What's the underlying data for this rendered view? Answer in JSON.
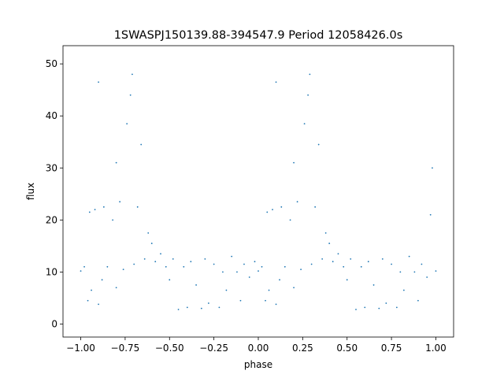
{
  "chart_data": {
    "type": "scatter",
    "title": "1SWASPJ150139.88-394547.9 Period 12058426.0s",
    "xlabel": "phase",
    "ylabel": "flux",
    "xlim": [
      -1.1,
      1.1
    ],
    "ylim": [
      -2.5,
      53.5
    ],
    "xticks": [
      -1.0,
      -0.75,
      -0.5,
      -0.25,
      0.0,
      0.25,
      0.5,
      0.75,
      1.0
    ],
    "xtick_labels": [
      "−1.00",
      "−0.75",
      "−0.50",
      "−0.25",
      "0.00",
      "0.25",
      "0.50",
      "0.75",
      "1.00"
    ],
    "yticks": [
      0,
      10,
      20,
      30,
      40,
      50
    ],
    "ytick_labels": [
      "0",
      "10",
      "20",
      "30",
      "40",
      "50"
    ],
    "grid": false,
    "legend": "none",
    "marker_color": "#1f77b4",
    "series": [
      {
        "values": [
          [
            -1.0,
            10.2
          ],
          [
            -0.98,
            11.0
          ],
          [
            -0.96,
            4.5
          ],
          [
            -0.95,
            21.5
          ],
          [
            -0.94,
            6.5
          ],
          [
            -0.92,
            22.0
          ],
          [
            -0.9,
            3.8
          ],
          [
            -0.9,
            46.5
          ],
          [
            -0.88,
            8.5
          ],
          [
            -0.87,
            22.5
          ],
          [
            -0.85,
            11.0
          ],
          [
            -0.82,
            20.0
          ],
          [
            -0.8,
            7.0
          ],
          [
            -0.8,
            31.0
          ],
          [
            -0.78,
            23.5
          ],
          [
            -0.76,
            10.5
          ],
          [
            -0.74,
            38.5
          ],
          [
            -0.72,
            44.0
          ],
          [
            -0.71,
            48.0
          ],
          [
            -0.7,
            11.5
          ],
          [
            -0.68,
            22.5
          ],
          [
            -0.66,
            34.5
          ],
          [
            -0.64,
            12.5
          ],
          [
            -0.62,
            17.5
          ],
          [
            -0.6,
            15.5
          ],
          [
            -0.58,
            12.0
          ],
          [
            -0.55,
            13.5
          ],
          [
            -0.52,
            11.0
          ],
          [
            -0.5,
            8.5
          ],
          [
            -0.48,
            12.5
          ],
          [
            -0.45,
            2.8
          ],
          [
            -0.42,
            11.0
          ],
          [
            -0.4,
            3.2
          ],
          [
            -0.38,
            12.0
          ],
          [
            -0.35,
            7.5
          ],
          [
            -0.32,
            3.0
          ],
          [
            -0.3,
            12.5
          ],
          [
            -0.28,
            4.0
          ],
          [
            -0.25,
            11.5
          ],
          [
            -0.22,
            3.2
          ],
          [
            -0.2,
            10.0
          ],
          [
            -0.18,
            6.5
          ],
          [
            -0.15,
            13.0
          ],
          [
            -0.12,
            10.0
          ],
          [
            -0.1,
            4.5
          ],
          [
            -0.08,
            11.5
          ],
          [
            -0.05,
            9.0
          ],
          [
            -0.02,
            12.0
          ],
          [
            0.0,
            10.2
          ],
          [
            0.02,
            11.0
          ],
          [
            0.04,
            4.5
          ],
          [
            0.05,
            21.5
          ],
          [
            0.06,
            6.5
          ],
          [
            0.08,
            22.0
          ],
          [
            0.1,
            3.8
          ],
          [
            0.1,
            46.5
          ],
          [
            0.12,
            8.5
          ],
          [
            0.13,
            22.5
          ],
          [
            0.15,
            11.0
          ],
          [
            0.18,
            20.0
          ],
          [
            0.2,
            7.0
          ],
          [
            0.2,
            31.0
          ],
          [
            0.22,
            23.5
          ],
          [
            0.24,
            10.5
          ],
          [
            0.26,
            38.5
          ],
          [
            0.28,
            44.0
          ],
          [
            0.29,
            48.0
          ],
          [
            0.3,
            11.5
          ],
          [
            0.32,
            22.5
          ],
          [
            0.34,
            34.5
          ],
          [
            0.36,
            12.5
          ],
          [
            0.38,
            17.5
          ],
          [
            0.4,
            15.5
          ],
          [
            0.42,
            12.0
          ],
          [
            0.45,
            13.5
          ],
          [
            0.48,
            11.0
          ],
          [
            0.5,
            8.5
          ],
          [
            0.52,
            12.5
          ],
          [
            0.55,
            2.8
          ],
          [
            0.58,
            11.0
          ],
          [
            0.6,
            3.2
          ],
          [
            0.62,
            12.0
          ],
          [
            0.65,
            7.5
          ],
          [
            0.68,
            3.0
          ],
          [
            0.7,
            12.5
          ],
          [
            0.72,
            4.0
          ],
          [
            0.75,
            11.5
          ],
          [
            0.78,
            3.2
          ],
          [
            0.8,
            10.0
          ],
          [
            0.82,
            6.5
          ],
          [
            0.85,
            13.0
          ],
          [
            0.88,
            10.0
          ],
          [
            0.9,
            4.5
          ],
          [
            0.92,
            11.5
          ],
          [
            0.95,
            9.0
          ],
          [
            0.97,
            21.0
          ],
          [
            0.98,
            30.0
          ],
          [
            1.0,
            10.2
          ]
        ]
      }
    ]
  }
}
